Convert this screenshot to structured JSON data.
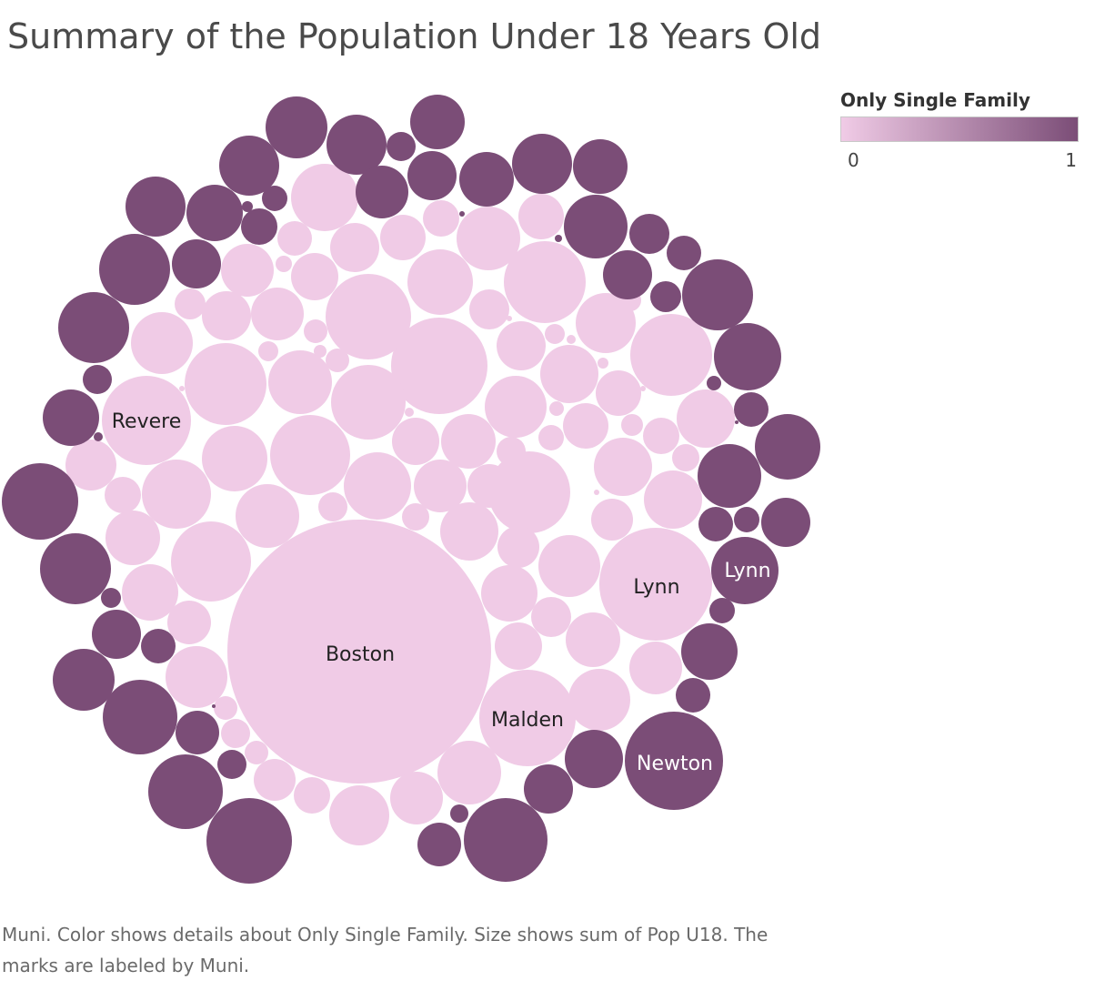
{
  "title": "Summary of the Population Under 18 Years Old",
  "legend": {
    "title": "Only Single Family",
    "min_label": "0",
    "max_label": "1",
    "color_min": "#f0cbe6",
    "color_max": "#7b4d77"
  },
  "caption": "Muni.  Color shows details about Only Single Family.  Size shows sum of Pop U18.  The marks are labeled by Muni.",
  "chart_data": {
    "type": "packed-bubble",
    "title": "Summary of the Population Under 18 Years Old",
    "size_measure": "Pop U18",
    "color_measure": "Only Single Family",
    "color_range": [
      0,
      1
    ],
    "labeled_marks": [
      {
        "label": "Boston",
        "only_single_family": 0
      },
      {
        "label": "Revere",
        "only_single_family": 0
      },
      {
        "label": "Lynn",
        "only_single_family": 0
      },
      {
        "label": "Malden",
        "only_single_family": 0
      },
      {
        "label": "Lynn",
        "only_single_family": 1
      },
      {
        "label": "Newton",
        "only_single_family": 1
      }
    ]
  }
}
